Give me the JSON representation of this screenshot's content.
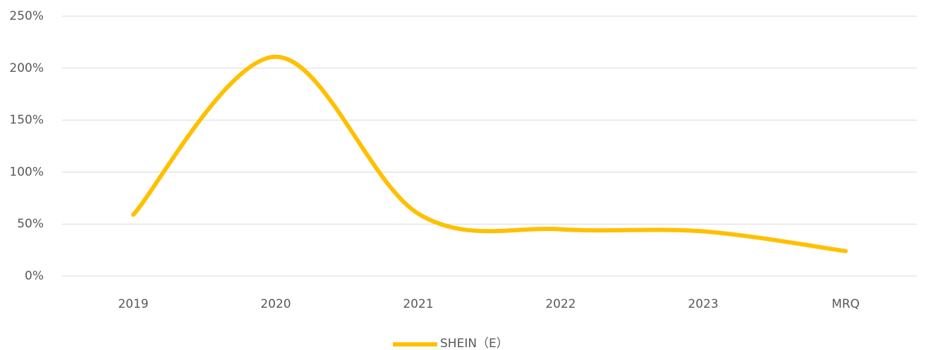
{
  "chart_data": {
    "type": "line",
    "categories": [
      "2019",
      "2020",
      "2021",
      "2022",
      "2023",
      "MRQ"
    ],
    "series": [
      {
        "name": "SHEIN（E）",
        "color": "#ffc000",
        "values": [
          59,
          211,
          60,
          45,
          43,
          24
        ]
      }
    ],
    "ylim": [
      0,
      250
    ],
    "yticks": [
      {
        "value": 0,
        "label": "0%"
      },
      {
        "value": 50,
        "label": "50%"
      },
      {
        "value": 100,
        "label": "100%"
      },
      {
        "value": 150,
        "label": "150%"
      },
      {
        "value": 200,
        "label": "200%"
      },
      {
        "value": 250,
        "label": "250%"
      }
    ],
    "grid": true,
    "smooth": true,
    "legend": "bottom"
  }
}
